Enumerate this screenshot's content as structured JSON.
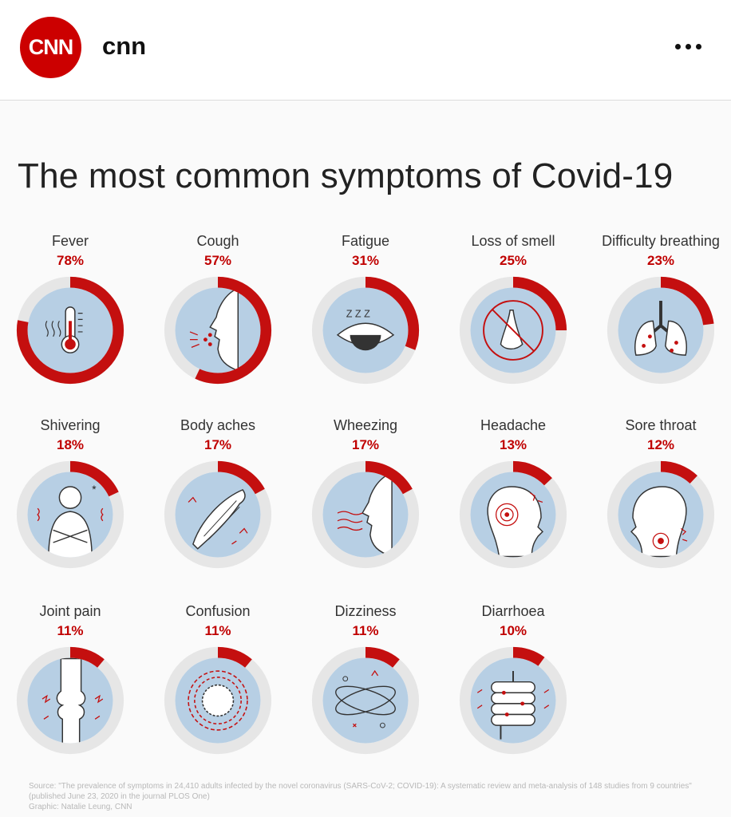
{
  "header": {
    "logo_text": "CNN",
    "account_name": "cnn",
    "more_icon": "more-horizontal-icon"
  },
  "colors": {
    "brand_red": "#cc0000",
    "arc_red": "#c40f0f",
    "ring_gray": "#e6e6e6",
    "inner_blue": "#b7cfe4"
  },
  "chart_data": {
    "type": "donut-grid",
    "title": "The most common symptoms of Covid-19",
    "unit": "%",
    "categories": [
      "Fever",
      "Cough",
      "Fatigue",
      "Loss of smell",
      "Difficulty breathing",
      "Shivering",
      "Body aches",
      "Wheezing",
      "Headache",
      "Sore throat",
      "Joint pain",
      "Confusion",
      "Dizziness",
      "Diarrhoea"
    ],
    "values": [
      78,
      57,
      31,
      25,
      23,
      18,
      17,
      17,
      13,
      12,
      11,
      11,
      11,
      10
    ],
    "labels": [
      "78%",
      "57%",
      "31%",
      "25%",
      "23%",
      "18%",
      "17%",
      "17%",
      "13%",
      "12%",
      "11%",
      "11%",
      "11%",
      "10%"
    ],
    "icons": [
      "thermometer-icon",
      "coughing-face-icon",
      "sleepy-eye-icon",
      "crossed-nose-icon",
      "lungs-icon",
      "shivering-person-icon",
      "muscle-icon",
      "wheezing-face-icon",
      "headache-icon",
      "sore-throat-icon",
      "joint-bone-icon",
      "confusion-spiral-icon",
      "dizziness-orbit-icon",
      "intestine-icon"
    ]
  },
  "footnote": {
    "source": "Source: \"The prevalence of symptoms in 24,410 adults infected by the novel coronavirus (SARS-CoV-2; COVID-19): A systematic review and meta-analysis of 148 studies from 9 countries\" (published June 23, 2020 in the journal PLOS One)",
    "graphic": "Graphic: Natalie Leung, CNN"
  }
}
